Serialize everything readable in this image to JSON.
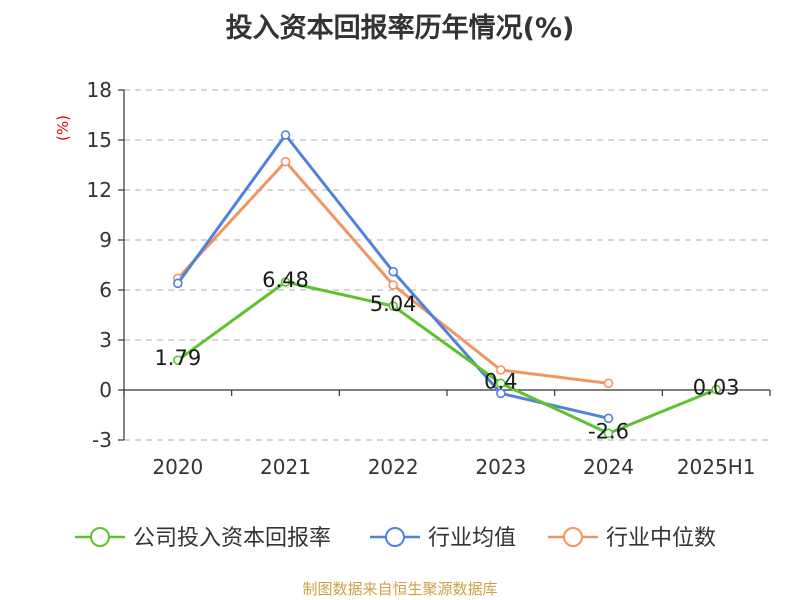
{
  "chart_data": {
    "type": "line",
    "title": "投入资本回报率历年情况(%)",
    "ylabel": "(%)",
    "categories": [
      "2020",
      "2021",
      "2022",
      "2023",
      "2024",
      "2025H1"
    ],
    "ylim": [
      -3,
      18
    ],
    "yticks": [
      -3,
      0,
      3,
      6,
      9,
      12,
      15,
      18
    ],
    "grid": true,
    "legend_position": "bottom",
    "series": [
      {
        "name": "公司投入资本回报率",
        "color": "#5cc230",
        "values": [
          1.79,
          6.48,
          5.04,
          0.4,
          -2.6,
          0.03
        ],
        "labels": [
          "1.79",
          "6.48",
          "5.04",
          "0.4",
          "-2.6",
          "0.03"
        ]
      },
      {
        "name": "行业均值",
        "color": "#4f82dc",
        "values": [
          6.4,
          15.3,
          7.1,
          -0.2,
          -1.7,
          null
        ]
      },
      {
        "name": "行业中位数",
        "color": "#f39460",
        "values": [
          6.7,
          13.7,
          6.3,
          1.2,
          0.4,
          null
        ]
      }
    ]
  },
  "source": "制图数据来自恒生聚源数据库"
}
